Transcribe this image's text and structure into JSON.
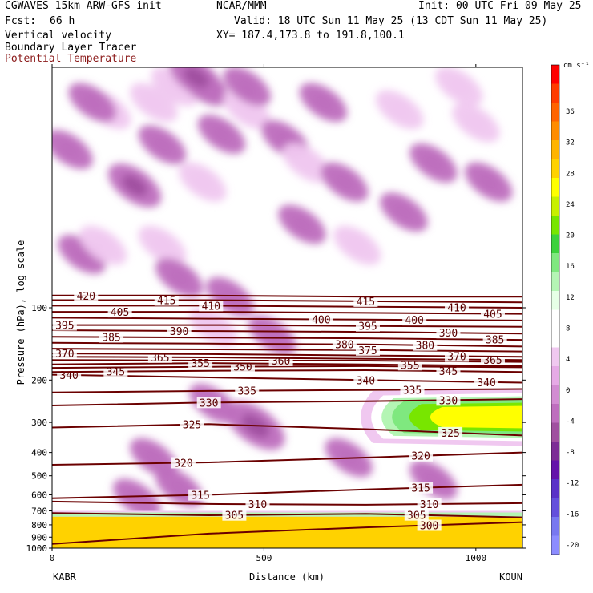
{
  "header": {
    "model": "CGWAVES 15km ARW-GFS init",
    "org": "NCAR/MMM",
    "init": "Init: 00 UTC Fri 09 May 25",
    "fcst_label": "Fcst:",
    "fcst_value": "66 h",
    "valid": "Valid: 18 UTC Sun 11 May 25 (13 CDT Sun 11 May 25)",
    "field1": "Vertical velocity",
    "xy": "XY= 187.4,173.8 to 191.8,100.1",
    "field2": "Boundary Layer Tracer",
    "field3": "Potential Temperature",
    "field3_color": "#8b1a1a"
  },
  "chart_data": {
    "type": "contour",
    "ylabel": "Pressure (hPa), log scale",
    "xlabel": "Distance (km)",
    "x_endpoints": {
      "left": "KABR",
      "right": "KOUN"
    },
    "xlim": [
      0,
      1110
    ],
    "x_ticks": [
      0,
      500,
      1000
    ],
    "y_scale": "log",
    "ylim": [
      1000,
      10
    ],
    "y_ticks": [
      100,
      200,
      300,
      400,
      500,
      600,
      700,
      800,
      900,
      1000
    ],
    "colorbar": {
      "units": "cm s⁻¹",
      "labels": [
        "36",
        "32",
        "28",
        "24",
        "20",
        "16",
        "12",
        "8",
        "4",
        "0",
        "-4",
        "-8",
        "-12",
        "-16",
        "-20"
      ],
      "colors": [
        "#ff0000",
        "#ff3c00",
        "#ff6400",
        "#ff8c00",
        "#ffb400",
        "#ffd200",
        "#ffff00",
        "#c8f000",
        "#78e600",
        "#3cd23c",
        "#7fe87f",
        "#b4f5b4",
        "#e6ffe6",
        "#ffffff",
        "#ffffff",
        "#f0c8f0",
        "#e6aae6",
        "#d28cd2",
        "#be6ebe",
        "#a050a0",
        "#7d2d96",
        "#6414aa",
        "#5a32c8",
        "#6450dc",
        "#7878f0",
        "#8c8cff"
      ],
      "range": [
        -22,
        40
      ]
    },
    "theta_contours": [
      {
        "value": 305,
        "label_x": [
          430,
          860
        ],
        "p": [
          715,
          730,
          720,
          745
        ]
      },
      {
        "value": 300,
        "label_x": [
          890
        ],
        "p": [
          960,
          870,
          820,
          780
        ]
      },
      {
        "value": 310,
        "label_x": [
          485,
          890
        ],
        "p": [
          640,
          655,
          660,
          650
        ]
      },
      {
        "value": 315,
        "label_x": [
          350,
          870
        ],
        "p": [
          620,
          600,
          570,
          545
        ]
      },
      {
        "value": 320,
        "label_x": [
          310,
          870
        ],
        "p": [
          450,
          440,
          420,
          400
        ]
      },
      {
        "value": 325,
        "label_x": [
          330,
          940
        ],
        "p": [
          315,
          305,
          320,
          340
        ]
      },
      {
        "value": 330,
        "label_x": [
          370,
          935
        ],
        "p": [
          255,
          248,
          245,
          240
        ]
      },
      {
        "value": 335,
        "label_x": [
          460,
          850
        ],
        "p": [
          225,
          222,
          220,
          218
        ]
      },
      {
        "value": 340,
        "label_x": [
          40,
          740,
          1025
        ],
        "p": [
          190,
          195,
          200,
          205
        ]
      },
      {
        "value": 345,
        "label_x": [
          150,
          935
        ],
        "p": [
          185,
          183,
          182,
          185
        ]
      },
      {
        "value": 350,
        "label_x": [
          450
        ],
        "p": [
          178,
          176,
          175,
          177
        ]
      },
      {
        "value": 355,
        "label_x": [
          350,
          845
        ],
        "p": [
          172,
          170,
          172,
          175
        ]
      },
      {
        "value": 360,
        "label_x": [
          540
        ],
        "p": [
          165,
          166,
          166,
          168
        ]
      },
      {
        "value": 365,
        "label_x": [
          255,
          1040
        ],
        "p": [
          160,
          161,
          163,
          165
        ]
      },
      {
        "value": 370,
        "label_x": [
          30,
          955
        ],
        "p": [
          155,
          156,
          158,
          160
        ]
      },
      {
        "value": 375,
        "label_x": [
          745
        ],
        "p": [
          148,
          149,
          150,
          152
        ]
      },
      {
        "value": 380,
        "label_x": [
          690,
          880
        ],
        "p": [
          140,
          141,
          142,
          145
        ]
      },
      {
        "value": 385,
        "label_x": [
          140,
          1045
        ],
        "p": [
          132,
          133,
          134,
          136
        ]
      },
      {
        "value": 390,
        "label_x": [
          300,
          935
        ],
        "p": [
          124,
          125,
          126,
          128
        ]
      },
      {
        "value": 395,
        "label_x": [
          30,
          745
        ],
        "p": [
          118,
          118,
          119,
          120
        ]
      },
      {
        "value": 400,
        "label_x": [
          635,
          855
        ],
        "p": [
          110,
          111,
          112,
          113
        ]
      },
      {
        "value": 405,
        "label_x": [
          160,
          1040
        ],
        "p": [
          104,
          104,
          105,
          106
        ]
      },
      {
        "value": 410,
        "label_x": [
          375,
          955
        ],
        "p": [
          98,
          98,
          99,
          100
        ]
      },
      {
        "value": 415,
        "label_x": [
          270,
          740
        ],
        "p": [
          93,
          93,
          94,
          95
        ]
      },
      {
        "value": 420,
        "label_x": [
          80
        ],
        "p": [
          89,
          89,
          90,
          90
        ]
      }
    ],
    "velocity_blobs": [
      {
        "x": 40,
        "p": 22,
        "w": -4
      },
      {
        "x": 130,
        "p": 15,
        "w": 4
      },
      {
        "x": 95,
        "p": 14,
        "w": -4
      },
      {
        "x": 195,
        "p": 31,
        "w": -6
      },
      {
        "x": 240,
        "p": 14,
        "w": 4
      },
      {
        "x": 290,
        "p": 12,
        "w": 4
      },
      {
        "x": 260,
        "p": 21,
        "w": -4
      },
      {
        "x": 355,
        "p": 30,
        "w": 4
      },
      {
        "x": 400,
        "p": 19,
        "w": -4
      },
      {
        "x": 360,
        "p": 12,
        "w": -4
      },
      {
        "x": 340,
        "p": 11,
        "w": -6
      },
      {
        "x": 460,
        "p": 15,
        "w": 4
      },
      {
        "x": 460,
        "p": 12,
        "w": -4
      },
      {
        "x": 550,
        "p": 20,
        "w": -4
      },
      {
        "x": 600,
        "p": 25,
        "w": 4
      },
      {
        "x": 590,
        "p": 45,
        "w": -4
      },
      {
        "x": 640,
        "p": 14,
        "w": -4
      },
      {
        "x": 690,
        "p": 30,
        "w": -4
      },
      {
        "x": 820,
        "p": 15,
        "w": 4
      },
      {
        "x": 720,
        "p": 55,
        "w": 4
      },
      {
        "x": 830,
        "p": 40,
        "w": -4
      },
      {
        "x": 900,
        "p": 25,
        "w": -4
      },
      {
        "x": 1000,
        "p": 17,
        "w": 4
      },
      {
        "x": 1030,
        "p": 30,
        "w": -4
      },
      {
        "x": 960,
        "p": 12,
        "w": 4
      },
      {
        "x": 70,
        "p": 60,
        "w": -4
      },
      {
        "x": 120,
        "p": 55,
        "w": 4
      },
      {
        "x": 260,
        "p": 55,
        "w": 4
      },
      {
        "x": 300,
        "p": 75,
        "w": -4
      },
      {
        "x": 420,
        "p": 90,
        "w": -4
      },
      {
        "x": 380,
        "p": 120,
        "w": 4
      },
      {
        "x": 520,
        "p": 130,
        "w": -4
      },
      {
        "x": 480,
        "p": 310,
        "w": -8
      },
      {
        "x": 380,
        "p": 250,
        "w": -4
      },
      {
        "x": 240,
        "p": 420,
        "w": -4
      },
      {
        "x": 300,
        "p": 560,
        "w": -4
      },
      {
        "x": 200,
        "p": 620,
        "w": -4
      },
      {
        "x": 700,
        "p": 420,
        "w": -4
      },
      {
        "x": 900,
        "p": 520,
        "w": -4
      }
    ],
    "jet": {
      "x_range": [
        700,
        1110
      ],
      "p_center": 285,
      "w_max": 22
    },
    "boundary_layer": {
      "p_top": 700,
      "tracer_top": 740,
      "value": 28
    }
  }
}
